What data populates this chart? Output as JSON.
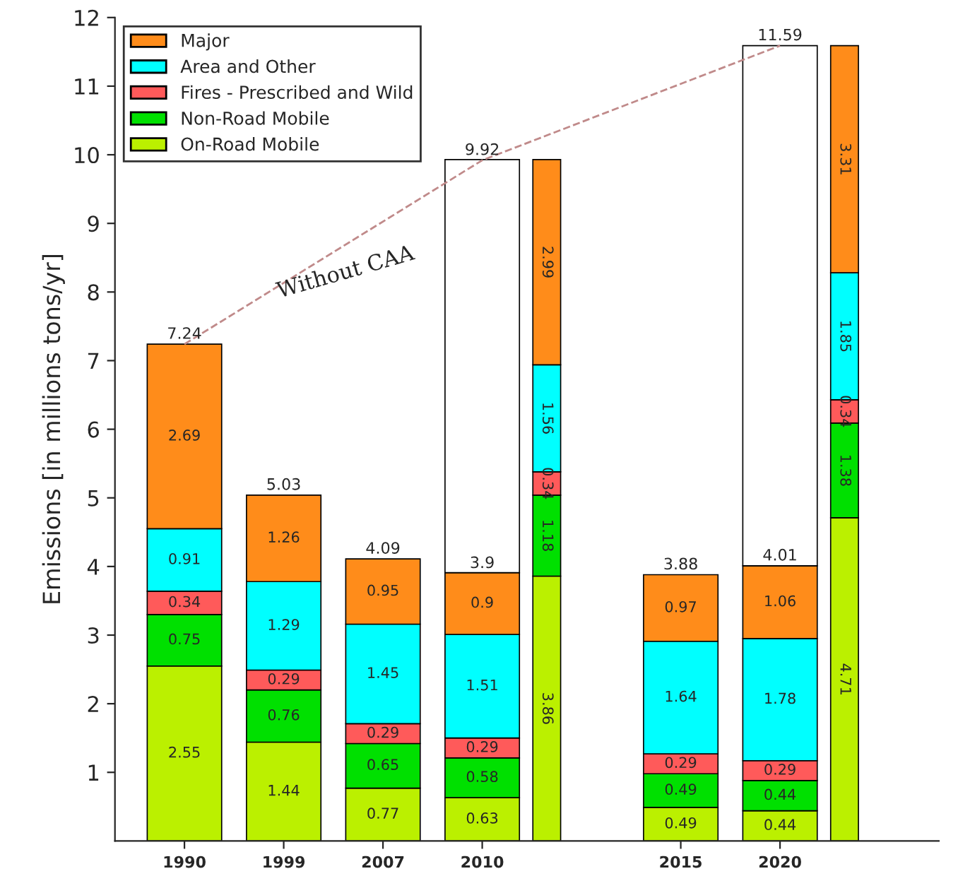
{
  "chart_data": {
    "type": "bar",
    "stacked": true,
    "ylabel": "Emissions [in millions tons/yr]",
    "categories": [
      "1990",
      "1999",
      "2007",
      "2010",
      null,
      "2015",
      "2020",
      null
    ],
    "series": [
      {
        "name": "On-Road Mobile",
        "color": "#bbf000",
        "values": [
          2.55,
          1.44,
          0.77,
          0.63,
          3.86,
          0.49,
          0.44,
          4.71
        ],
        "value_labels": [
          "2.55",
          "1.44",
          "0.77",
          "0.63",
          "3.86",
          "0.49",
          "0.44",
          "4.71"
        ]
      },
      {
        "name": "Non-Road Mobile",
        "color": "#00e000",
        "values": [
          0.75,
          0.76,
          0.65,
          0.58,
          1.18,
          0.49,
          0.44,
          1.38
        ],
        "value_labels": [
          "0.75",
          "0.76",
          "0.65",
          "0.58",
          "1.18",
          "0.49",
          "0.44",
          "1.38"
        ]
      },
      {
        "name": "Fires - Prescribed and Wild",
        "color": "#ff5a5a",
        "values": [
          0.34,
          0.29,
          0.29,
          0.29,
          0.34,
          0.29,
          0.29,
          0.34
        ],
        "value_labels": [
          "0.34",
          "0.29",
          "0.29",
          "0.29",
          "0.34",
          "0.29",
          "0.29",
          "0.34"
        ]
      },
      {
        "name": "Area and Other",
        "color": "#00ffff",
        "values": [
          0.91,
          1.29,
          1.45,
          1.51,
          1.56,
          1.64,
          1.78,
          1.85
        ],
        "value_labels": [
          "0.91",
          "1.29",
          "1.45",
          "1.51",
          "1.56",
          "1.64",
          "1.78",
          "1.85"
        ]
      },
      {
        "name": "Major",
        "color": "#ff8c1a",
        "values": [
          2.69,
          1.26,
          0.95,
          0.9,
          2.99,
          0.97,
          1.06,
          3.31
        ],
        "value_labels": [
          "2.69",
          "1.26",
          "0.95",
          "0.9",
          "2.99",
          "0.97",
          "1.06",
          "3.31"
        ]
      },
      {
        "color": "#ffffff",
        "values": [
          null,
          null,
          null,
          6.02,
          null,
          null,
          7.58,
          null
        ]
      },
      {
        "type": "line",
        "color": "#c08a8a",
        "line_style": "dashed",
        "marker": "none",
        "values": [
          7.24,
          null,
          null,
          9.92,
          null,
          null,
          11.59,
          null
        ]
      }
    ],
    "totals": [
      "7.24",
      "5.03",
      "4.09",
      null,
      null,
      "3.88",
      null,
      null
    ],
    "annotations": [
      {
        "text": "3.9",
        "x": "2010",
        "y": 3.9
      },
      {
        "text": "4.01",
        "x": "2020",
        "y": 4.01
      },
      {
        "text": "9.92",
        "x": "2010",
        "y": 9.92
      },
      {
        "text": "11.59",
        "x": "2020",
        "y": 11.59
      },
      "Without CAA"
    ],
    "ylim": [
      0,
      12
    ],
    "yticks": [
      1,
      2,
      3,
      4,
      5,
      6,
      7,
      8,
      9,
      10,
      11,
      12
    ],
    "grid": false,
    "legend": "top left"
  }
}
